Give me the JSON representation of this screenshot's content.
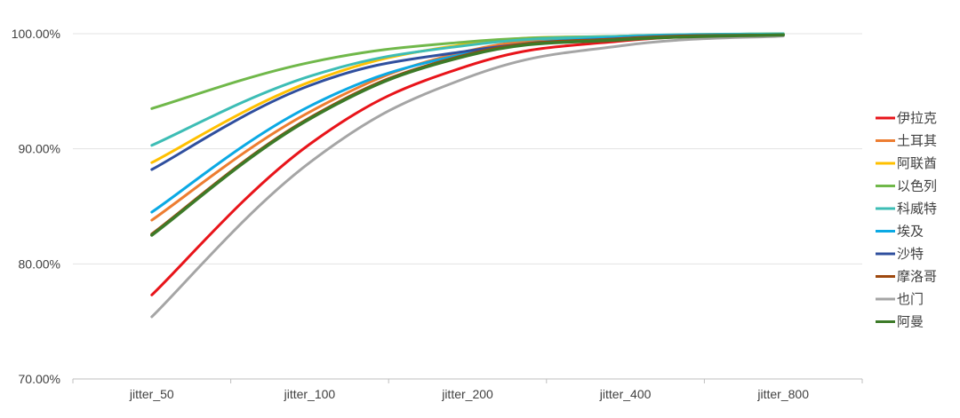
{
  "chart_data": {
    "type": "line",
    "title": "",
    "xlabel": "",
    "ylabel": "",
    "categories": [
      "jitter_50",
      "jitter_100",
      "jitter_200",
      "jitter_400",
      "jitter_800"
    ],
    "y_tick_labels": [
      "70.00%",
      "80.00%",
      "90.00%",
      "100.00%"
    ],
    "ylim": [
      70,
      100
    ],
    "grid": "horizontal",
    "legend_position": "right",
    "smooth": true,
    "series": [
      {
        "name": "伊拉克",
        "color": "#e8141a",
        "values": [
          77.3,
          90.4,
          97.2,
          99.4,
          99.9
        ]
      },
      {
        "name": "土耳其",
        "color": "#ed7d31",
        "values": [
          83.8,
          93.2,
          98.5,
          99.7,
          99.9
        ]
      },
      {
        "name": "阿联酋",
        "color": "#ffc000",
        "values": [
          88.8,
          95.8,
          99.1,
          99.8,
          100.0
        ]
      },
      {
        "name": "以色列",
        "color": "#70b84a",
        "values": [
          93.5,
          97.5,
          99.3,
          99.8,
          100.0
        ]
      },
      {
        "name": "科威特",
        "color": "#3dbdb5",
        "values": [
          90.3,
          96.3,
          99.0,
          99.8,
          100.0
        ]
      },
      {
        "name": "埃及",
        "color": "#0ba9e4",
        "values": [
          84.5,
          93.7,
          98.3,
          99.7,
          99.9
        ]
      },
      {
        "name": "沙特",
        "color": "#2f4f9e",
        "values": [
          88.2,
          95.5,
          98.5,
          99.6,
          99.9
        ]
      },
      {
        "name": "摩洛哥",
        "color": "#9e480e",
        "values": [
          82.6,
          92.7,
          98.2,
          99.6,
          99.9
        ]
      },
      {
        "name": "也门",
        "color": "#a5a5a5",
        "values": [
          75.4,
          88.8,
          96.2,
          99.0,
          99.8
        ]
      },
      {
        "name": "阿曼",
        "color": "#3c7a28",
        "values": [
          82.5,
          92.6,
          98.1,
          99.5,
          99.9
        ]
      }
    ]
  }
}
